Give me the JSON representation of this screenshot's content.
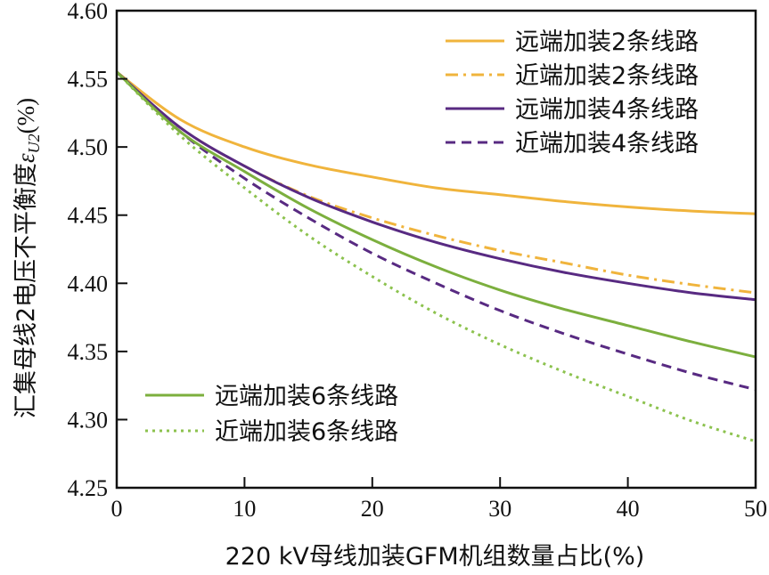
{
  "chart_data": {
    "type": "line",
    "xlabel": "220 kV母线加装GFM机组数量占比(%)",
    "ylabel": "汇集母线2电压不平衡度",
    "ylabel_symbol": "ε",
    "ylabel_subscript": "U2",
    "ylabel_unit": "(%)",
    "xlim": [
      0,
      50
    ],
    "ylim": [
      4.25,
      4.6
    ],
    "xticks": [
      "0",
      "10",
      "20",
      "30",
      "40",
      "50"
    ],
    "yticks": [
      "4.25",
      "4.30",
      "4.35",
      "4.40",
      "4.45",
      "4.50",
      "4.55",
      "4.60"
    ],
    "grid": false,
    "series": [
      {
        "name": "远端加装2条线路",
        "color": "#F0B43C",
        "dash": "solid",
        "x": [
          0,
          5,
          10,
          15,
          20,
          25,
          30,
          35,
          40,
          45,
          50
        ],
        "y": [
          4.555,
          4.52,
          4.5,
          4.487,
          4.478,
          4.47,
          4.465,
          4.46,
          4.456,
          4.453,
          4.451
        ]
      },
      {
        "name": "近端加装2条线路",
        "color": "#F0B43C",
        "dash": "dashdot",
        "x": [
          0,
          5,
          10,
          15,
          20,
          25,
          30,
          35,
          40,
          45,
          50
        ],
        "y": [
          4.555,
          4.514,
          4.486,
          4.464,
          4.448,
          4.435,
          4.424,
          4.415,
          4.406,
          4.399,
          4.393
        ]
      },
      {
        "name": "远端加装4条线路",
        "color": "#582A82",
        "dash": "solid",
        "x": [
          0,
          5,
          10,
          15,
          20,
          25,
          30,
          35,
          40,
          45,
          50
        ],
        "y": [
          4.555,
          4.514,
          4.486,
          4.463,
          4.445,
          4.43,
          4.418,
          4.408,
          4.4,
          4.393,
          4.388
        ]
      },
      {
        "name": "近端加装4条线路",
        "color": "#582A82",
        "dash": "dashed",
        "x": [
          0,
          5,
          10,
          15,
          20,
          25,
          30,
          35,
          40,
          45,
          50
        ],
        "y": [
          4.555,
          4.511,
          4.477,
          4.448,
          4.422,
          4.4,
          4.38,
          4.363,
          4.348,
          4.334,
          4.322
        ]
      },
      {
        "name": "远端加装6条线路",
        "color": "#7CAF3E",
        "dash": "solid",
        "x": [
          0,
          5,
          10,
          15,
          20,
          25,
          30,
          35,
          40,
          45,
          50
        ],
        "y": [
          4.555,
          4.511,
          4.482,
          4.455,
          4.432,
          4.412,
          4.395,
          4.381,
          4.369,
          4.357,
          4.346
        ]
      },
      {
        "name": "近端加装6条线路",
        "color": "#8CC24E",
        "dash": "dotted",
        "x": [
          0,
          5,
          10,
          15,
          20,
          25,
          30,
          35,
          40,
          45,
          50
        ],
        "y": [
          4.555,
          4.508,
          4.47,
          4.435,
          4.405,
          4.378,
          4.355,
          4.335,
          4.317,
          4.299,
          4.284
        ]
      }
    ],
    "legends": [
      {
        "placement": "top-right",
        "items": [
          0,
          1,
          2,
          3
        ]
      },
      {
        "placement": "bottom-left",
        "items": [
          4,
          5
        ]
      }
    ]
  }
}
